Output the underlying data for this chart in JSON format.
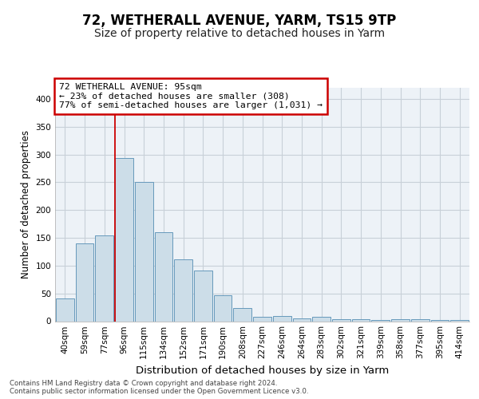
{
  "title": "72, WETHERALL AVENUE, YARM, TS15 9TP",
  "subtitle": "Size of property relative to detached houses in Yarm",
  "xlabel": "Distribution of detached houses by size in Yarm",
  "ylabel": "Number of detached properties",
  "bin_labels": [
    "40sqm",
    "59sqm",
    "77sqm",
    "96sqm",
    "115sqm",
    "134sqm",
    "152sqm",
    "171sqm",
    "190sqm",
    "208sqm",
    "227sqm",
    "246sqm",
    "264sqm",
    "283sqm",
    "302sqm",
    "321sqm",
    "339sqm",
    "358sqm",
    "377sqm",
    "395sqm",
    "414sqm"
  ],
  "bar_heights": [
    41,
    140,
    155,
    293,
    251,
    160,
    112,
    91,
    46,
    23,
    8,
    10,
    5,
    8,
    3,
    3,
    2,
    3,
    3,
    2,
    2
  ],
  "bar_color": "#ccdde8",
  "bar_edge_color": "#6699bb",
  "annotation_text": "72 WETHERALL AVENUE: 95sqm\n← 23% of detached houses are smaller (308)\n77% of semi-detached houses are larger (1,031) →",
  "annotation_box_color": "#ffffff",
  "annotation_box_edge": "#cc0000",
  "ylim": [
    0,
    420
  ],
  "yticks": [
    0,
    50,
    100,
    150,
    200,
    250,
    300,
    350,
    400
  ],
  "footer_text": "Contains HM Land Registry data © Crown copyright and database right 2024.\nContains public sector information licensed under the Open Government Licence v3.0.",
  "title_fontsize": 12,
  "subtitle_fontsize": 10,
  "xlabel_fontsize": 9.5,
  "ylabel_fontsize": 8.5,
  "tick_fontsize": 7.5,
  "grid_color": "#c8d0d8",
  "bg_color": "#edf2f7"
}
